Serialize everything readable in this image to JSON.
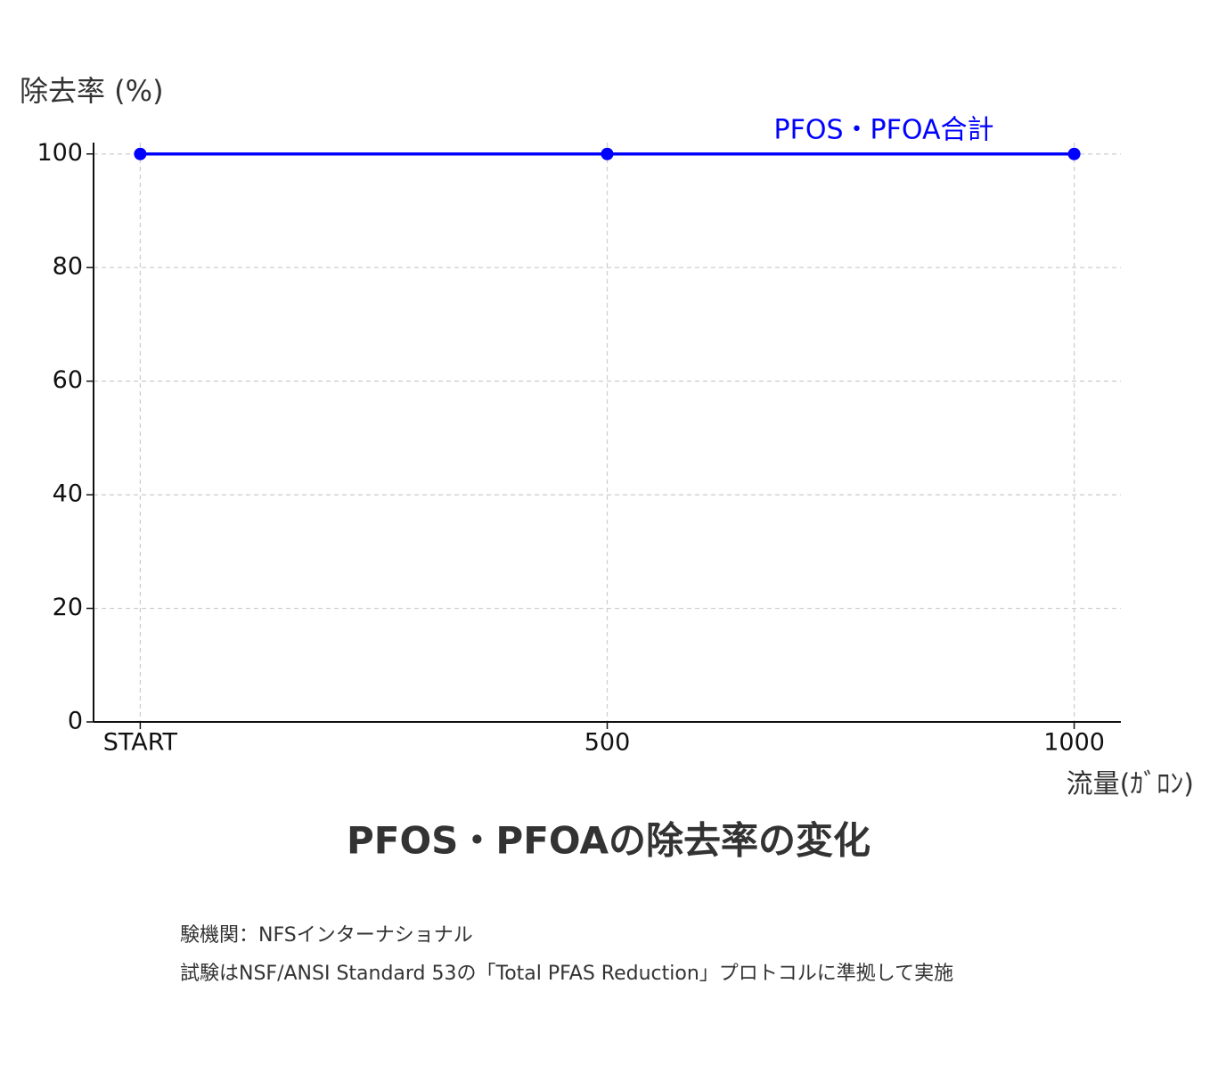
{
  "chart_data": {
    "type": "line",
    "title": "PFOS・PFOAの除去率の変化",
    "y_label": "除去率 (%)",
    "x_label": "流量(ｶﾞﾛﾝ)",
    "x": [
      0,
      500,
      1000
    ],
    "series": [
      {
        "name": "PFOS・PFOA合計",
        "color": "#0000ff",
        "values": [
          100,
          100,
          100
        ]
      }
    ],
    "xlim": [
      -50,
      1050
    ],
    "xticks": [
      {
        "value": 0,
        "label": "START"
      },
      500,
      1000
    ],
    "ylim": [
      0,
      102
    ],
    "yticks": [
      0,
      20,
      40,
      60,
      80,
      100
    ],
    "grid": true,
    "notes": [
      "験機関：NFSインターナショナル",
      "試験はNSF/ANSI Standard 53の「Total PFAS Reduction」プロトコルに準拠して実施"
    ]
  }
}
